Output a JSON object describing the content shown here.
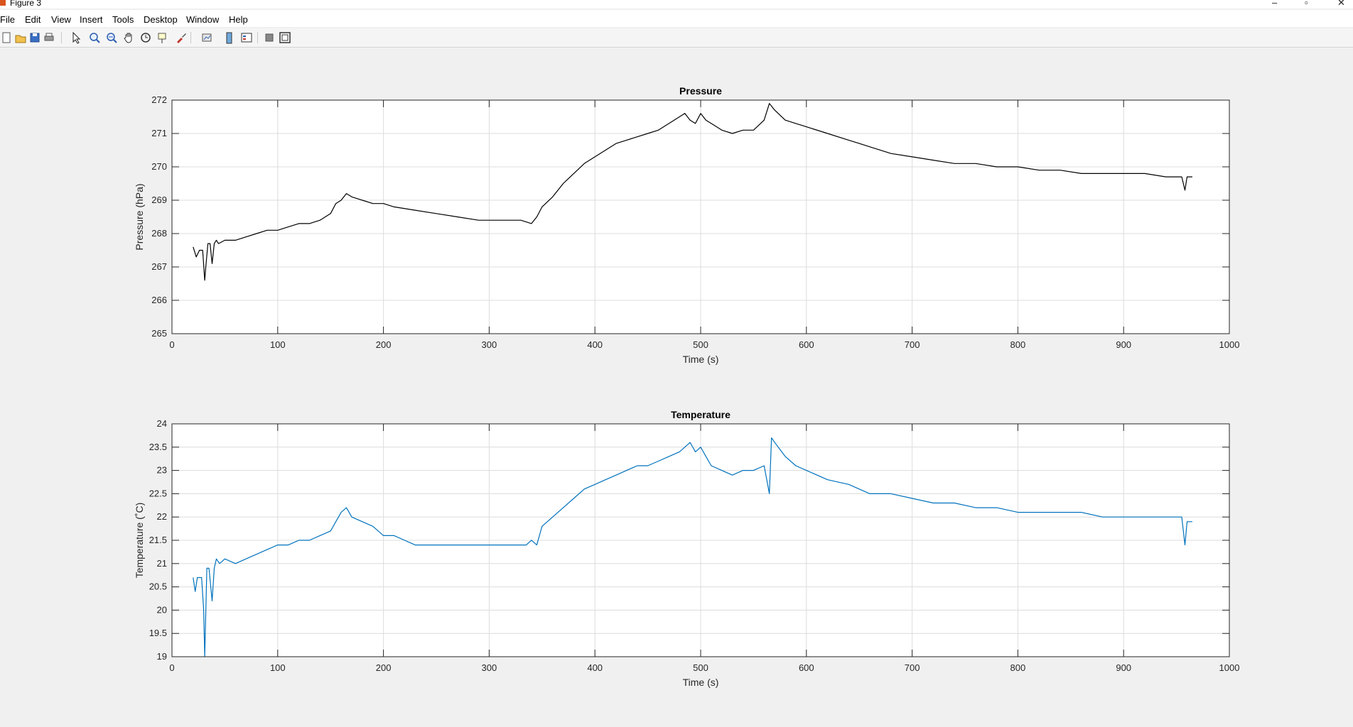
{
  "window": {
    "title": "Figure 3",
    "controls": [
      "–",
      "▫",
      "✕"
    ]
  },
  "menu": {
    "items": [
      "File",
      "Edit",
      "View",
      "Insert",
      "Tools",
      "Desktop",
      "Window",
      "Help"
    ]
  },
  "toolbar": {
    "icons": [
      "new-figure-icon",
      "open-file-icon",
      "save-icon",
      "print-icon",
      "pointer-icon",
      "zoom-in-icon",
      "zoom-out-icon",
      "pan-icon",
      "rotate-3d-icon",
      "data-cursor-icon",
      "brush-icon",
      "link-plot-icon",
      "colorbar-icon",
      "legend-icon",
      "hide-plot-tools-icon",
      "show-plot-tools-icon"
    ]
  },
  "colors": {
    "pressure_line": "#000000",
    "temperature_line": "#0072BD",
    "grid": "#dcdcdc"
  },
  "chart_data": [
    {
      "type": "line",
      "title": "Pressure",
      "xlabel": "Time (s)",
      "ylabel": "Pressure (hPa)",
      "xlim": [
        0,
        1000
      ],
      "ylim": [
        265,
        272
      ],
      "xticks": [
        0,
        100,
        200,
        300,
        400,
        500,
        600,
        700,
        800,
        900,
        1000
      ],
      "yticks": [
        265,
        266,
        267,
        268,
        269,
        270,
        271,
        272
      ],
      "grid": true,
      "series": [
        {
          "color": "#000000",
          "x": [
            20,
            23,
            26,
            29,
            31,
            32,
            34,
            36,
            38,
            40,
            42,
            44,
            50,
            60,
            70,
            80,
            90,
            100,
            110,
            120,
            130,
            140,
            150,
            155,
            160,
            165,
            170,
            180,
            190,
            200,
            210,
            230,
            250,
            270,
            290,
            310,
            330,
            340,
            345,
            350,
            360,
            370,
            380,
            390,
            400,
            410,
            420,
            430,
            440,
            450,
            460,
            470,
            480,
            485,
            490,
            495,
            500,
            505,
            510,
            520,
            530,
            540,
            550,
            560,
            565,
            570,
            580,
            590,
            600,
            620,
            640,
            650,
            660,
            680,
            700,
            720,
            740,
            760,
            780,
            800,
            820,
            840,
            860,
            880,
            900,
            920,
            940,
            955,
            958,
            960,
            965
          ],
          "y": [
            267.6,
            267.3,
            267.5,
            267.5,
            266.6,
            267.0,
            267.7,
            267.7,
            267.1,
            267.7,
            267.8,
            267.7,
            267.8,
            267.8,
            267.9,
            268.0,
            268.1,
            268.1,
            268.2,
            268.3,
            268.3,
            268.4,
            268.6,
            268.9,
            269.0,
            269.2,
            269.1,
            269.0,
            268.9,
            268.9,
            268.8,
            268.7,
            268.6,
            268.5,
            268.4,
            268.4,
            268.4,
            268.3,
            268.5,
            268.8,
            269.1,
            269.5,
            269.8,
            270.1,
            270.3,
            270.5,
            270.7,
            270.8,
            270.9,
            271.0,
            271.1,
            271.3,
            271.5,
            271.6,
            271.4,
            271.3,
            271.6,
            271.4,
            271.3,
            271.1,
            271.0,
            271.1,
            271.1,
            271.4,
            271.9,
            271.7,
            271.4,
            271.3,
            271.2,
            271.0,
            270.8,
            270.7,
            270.6,
            270.4,
            270.3,
            270.2,
            270.1,
            270.1,
            270.0,
            270.0,
            269.9,
            269.9,
            269.8,
            269.8,
            269.8,
            269.8,
            269.7,
            269.7,
            269.3,
            269.7,
            269.7
          ]
        }
      ]
    },
    {
      "type": "line",
      "title": "Temperature",
      "xlabel": "Time (s)",
      "ylabel": "Temperature (˚C)",
      "xlim": [
        0,
        1000
      ],
      "ylim": [
        19,
        24
      ],
      "xticks": [
        0,
        100,
        200,
        300,
        400,
        500,
        600,
        700,
        800,
        900,
        1000
      ],
      "yticks": [
        "19",
        "19.5",
        "20",
        "20.5",
        "21",
        "21.5",
        "22",
        "22.5",
        "23",
        "23.5",
        "24"
      ],
      "grid": true,
      "series": [
        {
          "color": "#0072BD",
          "x": [
            20,
            22,
            24,
            28,
            30,
            31,
            33,
            35,
            38,
            40,
            42,
            45,
            50,
            60,
            70,
            80,
            90,
            100,
            110,
            120,
            130,
            140,
            150,
            155,
            160,
            165,
            170,
            180,
            190,
            200,
            210,
            220,
            230,
            250,
            280,
            310,
            335,
            340,
            345,
            350,
            360,
            370,
            380,
            390,
            400,
            410,
            420,
            430,
            440,
            450,
            460,
            470,
            480,
            485,
            490,
            495,
            500,
            505,
            510,
            520,
            530,
            540,
            550,
            560,
            565,
            567,
            570,
            580,
            590,
            600,
            620,
            640,
            660,
            680,
            700,
            720,
            740,
            760,
            780,
            800,
            820,
            840,
            860,
            880,
            900,
            920,
            940,
            955,
            958,
            960,
            965
          ],
          "y": [
            20.7,
            20.4,
            20.7,
            20.7,
            20.0,
            19.0,
            20.9,
            20.9,
            20.2,
            20.9,
            21.1,
            21.0,
            21.1,
            21.0,
            21.1,
            21.2,
            21.3,
            21.4,
            21.4,
            21.5,
            21.5,
            21.6,
            21.7,
            21.9,
            22.1,
            22.2,
            22.0,
            21.9,
            21.8,
            21.6,
            21.6,
            21.5,
            21.4,
            21.4,
            21.4,
            21.4,
            21.4,
            21.5,
            21.4,
            21.8,
            22.0,
            22.2,
            22.4,
            22.6,
            22.7,
            22.8,
            22.9,
            23.0,
            23.1,
            23.1,
            23.2,
            23.3,
            23.4,
            23.5,
            23.6,
            23.4,
            23.5,
            23.3,
            23.1,
            23.0,
            22.9,
            23.0,
            23.0,
            23.1,
            22.5,
            23.7,
            23.6,
            23.3,
            23.1,
            23.0,
            22.8,
            22.7,
            22.5,
            22.5,
            22.4,
            22.3,
            22.3,
            22.2,
            22.2,
            22.1,
            22.1,
            22.1,
            22.1,
            22.0,
            22.0,
            22.0,
            22.0,
            22.0,
            21.4,
            21.9,
            21.9
          ]
        }
      ]
    }
  ]
}
